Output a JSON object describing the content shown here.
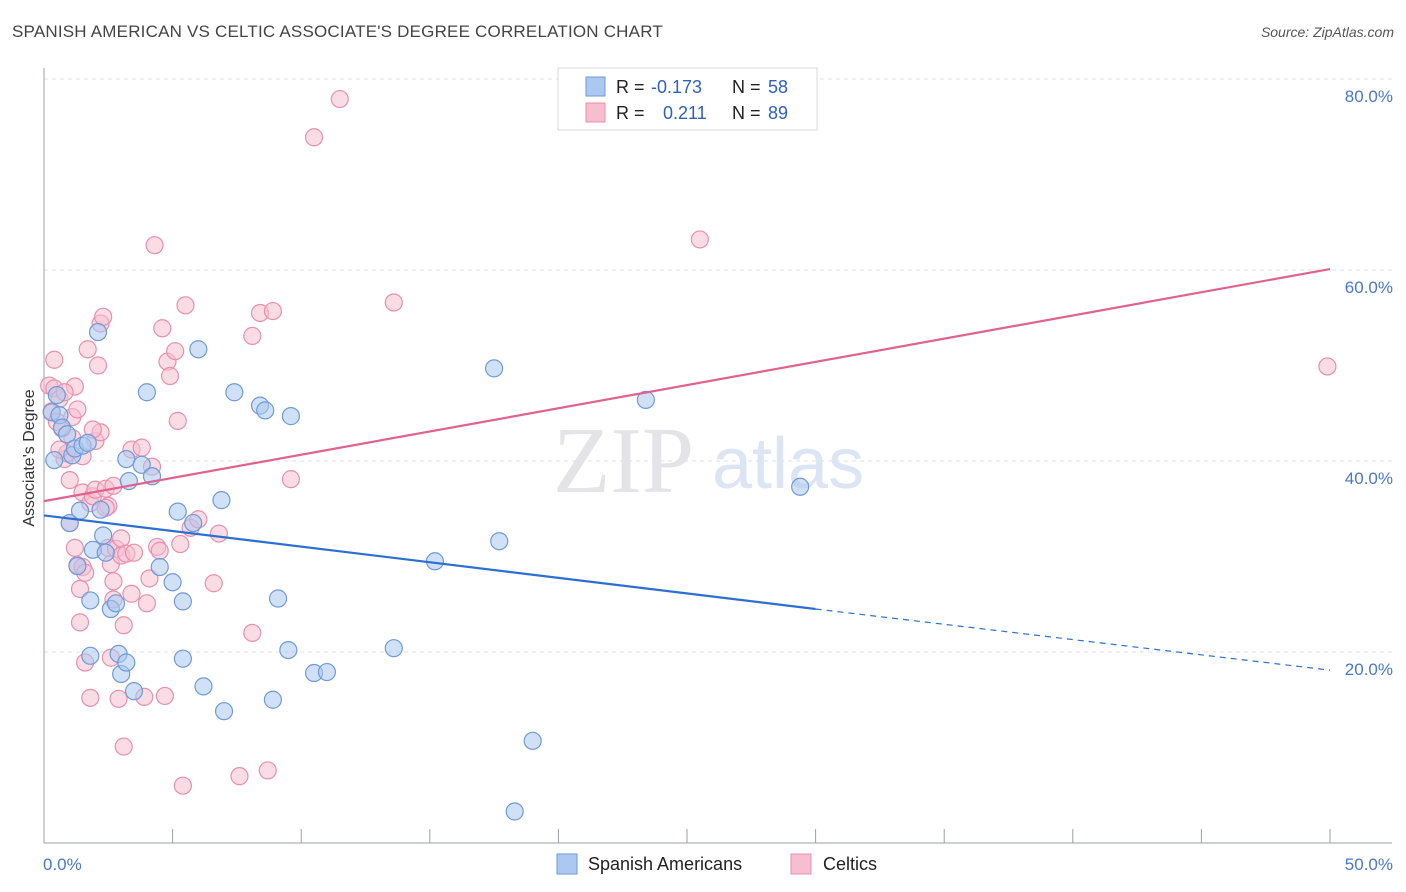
{
  "title": "SPANISH AMERICAN VS CELTIC ASSOCIATE'S DEGREE CORRELATION CHART",
  "source": "Source: ZipAtlas.com",
  "watermark": {
    "zip": "ZIP",
    "atlas": "atlas"
  },
  "legend_top": {
    "rows": [
      {
        "r_label": "R =",
        "r_value": "-0.173",
        "n_label": "N =",
        "n_value": "58"
      },
      {
        "r_label": "R =",
        "r_value": "0.211",
        "n_label": "N =",
        "n_value": "89"
      }
    ]
  },
  "legend_bottom": [
    "Spanish Americans",
    "Celtics"
  ],
  "colors": {
    "blue_fill": "#aac8f0",
    "blue_stroke": "#6f9ad8",
    "blue_line": "#2c6fd0",
    "pink_fill": "#f6bfd0",
    "pink_stroke": "#e98fad",
    "pink_line": "#e0628e",
    "grid": "#dde0e6",
    "tick_label": "#4a78c8"
  },
  "chart_data": {
    "type": "scatter",
    "title": "SPANISH AMERICAN VS CELTIC ASSOCIATE'S DEGREE CORRELATION CHART",
    "xlabel": "",
    "ylabel": "Associate's Degree",
    "xlim": [
      0,
      50
    ],
    "ylim": [
      0,
      82
    ],
    "x_tick_labels": [
      "0.0%",
      "50.0%"
    ],
    "y_ticks": [
      20,
      40,
      60,
      80
    ],
    "y_tick_labels": [
      "20.0%",
      "40.0%",
      "60.0%",
      "80.0%"
    ],
    "series": [
      {
        "name": "Spanish Americans",
        "color": "#6f9ad8",
        "trend": {
          "x0": 0,
          "y0": 34.3,
          "x1": 30,
          "y1": 24.5,
          "dash_to_x": 50,
          "dash_to_y": 18.1
        },
        "points": [
          [
            0.3,
            45.1
          ],
          [
            0.4,
            40.1
          ],
          [
            0.5,
            46.9
          ],
          [
            0.6,
            44.8
          ],
          [
            0.7,
            43.5
          ],
          [
            0.9,
            42.8
          ],
          [
            1.0,
            33.5
          ],
          [
            1.1,
            40.6
          ],
          [
            1.2,
            41.3
          ],
          [
            1.3,
            29.0
          ],
          [
            1.4,
            34.8
          ],
          [
            1.5,
            41.6
          ],
          [
            1.7,
            41.9
          ],
          [
            1.8,
            25.4
          ],
          [
            1.8,
            19.6
          ],
          [
            1.9,
            30.7
          ],
          [
            2.1,
            53.5
          ],
          [
            2.2,
            34.9
          ],
          [
            2.3,
            32.2
          ],
          [
            2.4,
            30.4
          ],
          [
            2.6,
            24.5
          ],
          [
            2.8,
            25.1
          ],
          [
            2.9,
            19.8
          ],
          [
            3.0,
            17.7
          ],
          [
            3.2,
            18.9
          ],
          [
            3.2,
            40.2
          ],
          [
            3.3,
            37.9
          ],
          [
            3.5,
            15.9
          ],
          [
            3.8,
            39.6
          ],
          [
            4.0,
            47.2
          ],
          [
            4.2,
            38.4
          ],
          [
            4.5,
            28.9
          ],
          [
            5.0,
            27.3
          ],
          [
            5.2,
            34.7
          ],
          [
            5.4,
            25.3
          ],
          [
            5.4,
            19.3
          ],
          [
            5.8,
            33.5
          ],
          [
            6.0,
            51.7
          ],
          [
            6.2,
            16.4
          ],
          [
            6.9,
            35.9
          ],
          [
            7.0,
            13.8
          ],
          [
            7.4,
            47.2
          ],
          [
            8.4,
            45.8
          ],
          [
            8.6,
            45.3
          ],
          [
            8.9,
            15.0
          ],
          [
            9.1,
            25.6
          ],
          [
            9.5,
            20.2
          ],
          [
            9.6,
            44.7
          ],
          [
            10.5,
            17.8
          ],
          [
            11.0,
            17.9
          ],
          [
            13.6,
            20.4
          ],
          [
            15.2,
            29.5
          ],
          [
            17.5,
            49.7
          ],
          [
            17.7,
            31.6
          ],
          [
            18.3,
            3.3
          ],
          [
            19.0,
            10.7
          ],
          [
            23.4,
            46.4
          ],
          [
            29.4,
            37.3
          ]
        ]
      },
      {
        "name": "Celtics",
        "color": "#e98fad",
        "trend": {
          "x0": 0,
          "y0": 35.8,
          "x1": 50,
          "y1": 60.1
        },
        "points": [
          [
            0.2,
            47.9
          ],
          [
            0.3,
            45.2
          ],
          [
            0.4,
            50.6
          ],
          [
            0.4,
            47.6
          ],
          [
            0.5,
            44.1
          ],
          [
            0.6,
            46.5
          ],
          [
            0.7,
            43.4
          ],
          [
            0.8,
            40.2
          ],
          [
            0.9,
            40.8
          ],
          [
            1.0,
            38.0
          ],
          [
            1.0,
            33.5
          ],
          [
            1.1,
            44.6
          ],
          [
            1.1,
            42.4
          ],
          [
            1.2,
            47.8
          ],
          [
            1.2,
            30.9
          ],
          [
            1.3,
            45.4
          ],
          [
            1.3,
            29.1
          ],
          [
            1.4,
            26.6
          ],
          [
            1.4,
            23.1
          ],
          [
            1.5,
            36.7
          ],
          [
            1.5,
            28.9
          ],
          [
            1.6,
            28.3
          ],
          [
            1.6,
            18.9
          ],
          [
            1.7,
            51.7
          ],
          [
            1.8,
            35.6
          ],
          [
            1.8,
            15.2
          ],
          [
            1.9,
            36.3
          ],
          [
            2.0,
            42.1
          ],
          [
            2.0,
            37.0
          ],
          [
            2.1,
            50.0
          ],
          [
            2.2,
            43.0
          ],
          [
            2.2,
            54.4
          ],
          [
            2.3,
            55.1
          ],
          [
            2.4,
            37.1
          ],
          [
            2.5,
            30.9
          ],
          [
            2.5,
            35.3
          ],
          [
            2.6,
            29.2
          ],
          [
            2.6,
            19.4
          ],
          [
            2.7,
            27.4
          ],
          [
            2.7,
            25.5
          ],
          [
            2.8,
            30.8
          ],
          [
            2.9,
            15.1
          ],
          [
            3.0,
            30.1
          ],
          [
            3.0,
            31.9
          ],
          [
            3.1,
            10.1
          ],
          [
            3.1,
            22.8
          ],
          [
            3.2,
            30.3
          ],
          [
            3.4,
            41.2
          ],
          [
            3.5,
            30.4
          ],
          [
            3.8,
            41.4
          ],
          [
            3.9,
            15.3
          ],
          [
            4.0,
            25.1
          ],
          [
            4.1,
            27.7
          ],
          [
            4.2,
            39.4
          ],
          [
            4.3,
            62.6
          ],
          [
            4.4,
            31.0
          ],
          [
            4.5,
            30.6
          ],
          [
            4.6,
            53.9
          ],
          [
            4.7,
            15.4
          ],
          [
            4.8,
            50.4
          ],
          [
            4.9,
            48.9
          ],
          [
            5.1,
            51.5
          ],
          [
            5.2,
            44.2
          ],
          [
            5.3,
            31.3
          ],
          [
            5.4,
            6.0
          ],
          [
            5.5,
            56.3
          ],
          [
            5.7,
            33.0
          ],
          [
            6.0,
            33.9
          ],
          [
            6.6,
            27.2
          ],
          [
            6.8,
            32.4
          ],
          [
            7.6,
            7.0
          ],
          [
            8.1,
            53.1
          ],
          [
            8.1,
            22.0
          ],
          [
            8.4,
            55.5
          ],
          [
            8.7,
            7.6
          ],
          [
            8.9,
            55.7
          ],
          [
            9.6,
            38.1
          ],
          [
            10.5,
            73.9
          ],
          [
            11.5,
            77.9
          ],
          [
            13.6,
            56.6
          ],
          [
            25.5,
            63.2
          ],
          [
            49.9,
            49.9
          ],
          [
            0.6,
            41.2
          ],
          [
            0.8,
            47.2
          ],
          [
            1.9,
            43.3
          ],
          [
            2.7,
            37.4
          ],
          [
            3.4,
            26.1
          ],
          [
            1.5,
            40.5
          ],
          [
            2.4,
            35.1
          ]
        ]
      }
    ]
  }
}
